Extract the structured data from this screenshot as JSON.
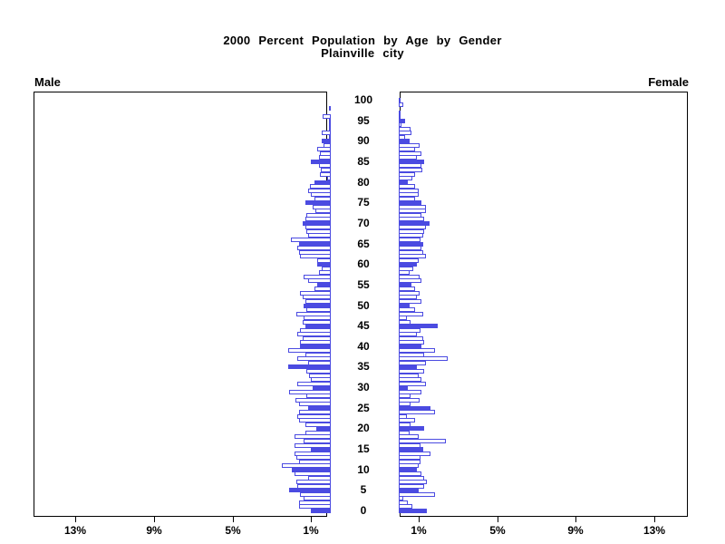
{
  "title": {
    "line1": "2000 Percent Population by Age by Gender",
    "line2": "Plainville city"
  },
  "panels": {
    "male_label": "Male",
    "female_label": "Female"
  },
  "axis": {
    "male_tick_labels": [
      "13%",
      "9%",
      "5%",
      "1%"
    ],
    "male_tick_values": [
      13,
      9,
      5,
      1
    ],
    "female_tick_labels": [
      "1%",
      "5%",
      "9%",
      "13%"
    ],
    "female_tick_values": [
      1,
      5,
      9,
      13
    ],
    "age_tick_labels": [
      "0",
      "5",
      "10",
      "15",
      "20",
      "25",
      "30",
      "35",
      "40",
      "45",
      "50",
      "55",
      "60",
      "65",
      "70",
      "75",
      "80",
      "85",
      "90",
      "95",
      "100"
    ],
    "age_tick_values": [
      0,
      5,
      10,
      15,
      20,
      25,
      30,
      35,
      40,
      45,
      50,
      55,
      60,
      65,
      70,
      75,
      80,
      85,
      90,
      95,
      100
    ]
  },
  "colors": {
    "bar_blue": "#4B4BE1",
    "bar_outline": "#4B4BE1",
    "frame": "#000000"
  },
  "chart_data": {
    "type": "bar",
    "subtype": "population-pyramid",
    "title": "2000 Percent Population by Age by Gender",
    "subtitle": "Plainville city",
    "orientation": "horizontal",
    "x_unit": "percent of total population",
    "age_min": 0,
    "age_max": 100,
    "age_step": 1,
    "xlim_pct": [
      0,
      15
    ],
    "x_ticks_pct": [
      1,
      5,
      9,
      13
    ],
    "highlight_multiples_of": 5,
    "legend": "none",
    "grid": false,
    "series": [
      {
        "name": "Male",
        "values": [
          1.0,
          1.6,
          1.6,
          1.4,
          1.55,
          2.1,
          1.7,
          1.75,
          1.15,
          1.85,
          2.0,
          2.5,
          1.6,
          1.75,
          1.85,
          1.0,
          1.85,
          1.4,
          1.85,
          1.3,
          0.75,
          1.3,
          1.6,
          1.7,
          1.6,
          1.15,
          1.6,
          1.8,
          1.25,
          2.1,
          0.9,
          1.7,
          1.0,
          1.1,
          1.25,
          2.15,
          1.15,
          1.7,
          1.3,
          2.15,
          1.55,
          1.55,
          1.45,
          1.7,
          1.55,
          1.3,
          1.45,
          1.4,
          1.75,
          1.25,
          1.4,
          1.3,
          1.45,
          1.55,
          0.85,
          0.7,
          1.15,
          1.4,
          0.6,
          0.45,
          0.7,
          0.7,
          1.55,
          1.6,
          1.7,
          1.6,
          2.05,
          1.15,
          1.25,
          1.3,
          1.45,
          1.3,
          1.25,
          0.8,
          0.9,
          1.3,
          0.85,
          1.0,
          1.15,
          1.05,
          0.85,
          0.2,
          0.55,
          0.5,
          0.6,
          1.0,
          0.6,
          0.55,
          0.7,
          0.35,
          0.45,
          0.1,
          0.45,
          0.1,
          0.05,
          0.05,
          0.4,
          0.0,
          0.05,
          0.0,
          0.0
        ]
      },
      {
        "name": "Female",
        "values": [
          1.45,
          0.7,
          0.45,
          0.25,
          1.85,
          1.0,
          1.3,
          1.45,
          1.3,
          1.15,
          0.9,
          1.0,
          1.1,
          1.1,
          1.6,
          1.25,
          1.1,
          2.4,
          1.0,
          0.55,
          1.3,
          0.6,
          0.85,
          0.4,
          1.85,
          1.6,
          0.6,
          1.05,
          0.6,
          1.15,
          0.45,
          1.4,
          1.15,
          1.0,
          1.3,
          0.9,
          1.4,
          2.5,
          1.3,
          1.85,
          1.15,
          1.3,
          1.25,
          0.9,
          1.1,
          2.0,
          0.6,
          0.4,
          1.25,
          0.85,
          0.55,
          1.15,
          0.9,
          1.05,
          0.85,
          0.65,
          1.15,
          1.05,
          0.55,
          0.75,
          0.9,
          1.0,
          1.4,
          1.25,
          1.15,
          1.25,
          1.1,
          1.25,
          1.3,
          1.4,
          1.55,
          1.3,
          1.15,
          1.4,
          1.4,
          1.15,
          0.85,
          1.0,
          1.0,
          0.85,
          0.45,
          0.7,
          0.85,
          1.2,
          1.15,
          1.3,
          0.9,
          1.15,
          0.85,
          1.05,
          0.55,
          0.3,
          0.65,
          0.6,
          0.15,
          0.3,
          0.05,
          0.1,
          0.0,
          0.25,
          0.05
        ]
      }
    ]
  }
}
